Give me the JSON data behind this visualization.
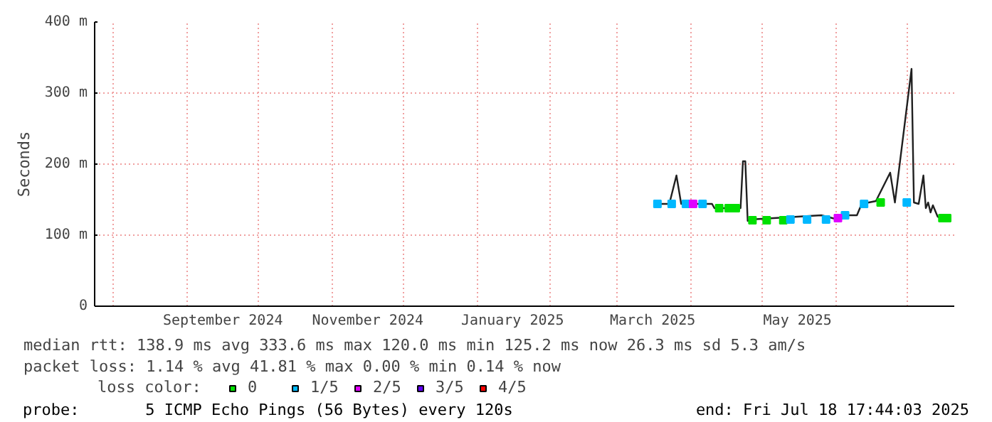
{
  "chart_data": {
    "type": "line",
    "ylabel": "Seconds",
    "xlim": [
      "2024-07-24",
      "2025-07-21"
    ],
    "xticks": [
      {
        "value": "2024-08-01",
        "label": null
      },
      {
        "value": "2024-09-01",
        "label": null
      },
      {
        "value": "2024-09-16",
        "label": "September 2024"
      },
      {
        "value": "2024-10-01",
        "label": null
      },
      {
        "value": "2024-11-01",
        "label": null
      },
      {
        "value": "2024-11-16",
        "label": "November 2024"
      },
      {
        "value": "2024-12-01",
        "label": null
      },
      {
        "value": "2025-01-01",
        "label": null
      },
      {
        "value": "2025-01-16",
        "label": "January 2025"
      },
      {
        "value": "2025-02-01",
        "label": null
      },
      {
        "value": "2025-03-01",
        "label": null
      },
      {
        "value": "2025-03-16",
        "label": "March 2025"
      },
      {
        "value": "2025-04-01",
        "label": null
      },
      {
        "value": "2025-05-01",
        "label": null
      },
      {
        "value": "2025-05-16",
        "label": "May 2025"
      },
      {
        "value": "2025-06-01",
        "label": null
      },
      {
        "value": "2025-07-01",
        "label": null
      }
    ],
    "ylim": [
      0,
      400
    ],
    "yticks": [
      0,
      {
        "value": 100,
        "label": "100 m"
      },
      {
        "value": 200,
        "label": "200 m"
      },
      {
        "value": 300,
        "label": "300 m"
      },
      {
        "value": 400,
        "label": "400 m"
      }
    ],
    "grid": true,
    "legend": "bottom",
    "legend_title": "loss color:",
    "series": [
      {
        "color": "#202020",
        "x": [
          "2025-03-18",
          "2025-03-23",
          "2025-03-26",
          "2025-03-28",
          "2025-04-10",
          "2025-04-11",
          "2025-04-22",
          "2025-04-23",
          "2025-04-24",
          "2025-04-25",
          "2025-04-26",
          "2025-05-26",
          "2025-06-02",
          "2025-06-03",
          "2025-06-10",
          "2025-06-12",
          "2025-06-18",
          "2025-06-24",
          "2025-06-26",
          "2025-07-03",
          "2025-07-04",
          "2025-07-06",
          "2025-07-08",
          "2025-07-09",
          "2025-07-10",
          "2025-07-11",
          "2025-07-12",
          "2025-07-14",
          "2025-07-15",
          "2025-07-18"
        ],
        "values": [
          144,
          144,
          184,
          144,
          144,
          138,
          138,
          204,
          204,
          120,
          122,
          128,
          122,
          128,
          128,
          144,
          148,
          188,
          146,
          334,
          146,
          144,
          184,
          138,
          146,
          132,
          142,
          126,
          124,
          124
        ]
      },
      {
        "name": "0",
        "color": "#00e000",
        "type": "scatter",
        "marker": "square",
        "x": [
          "2025-04-13",
          "2025-04-17",
          "2025-04-20",
          "2025-04-27",
          "2025-05-03",
          "2025-05-10",
          "2025-06-20",
          "2025-07-16",
          "2025-07-18"
        ],
        "values": [
          138,
          138,
          138,
          121,
          121,
          121,
          146,
          124,
          124
        ]
      },
      {
        "name": "1/5",
        "color": "#00b8ff",
        "type": "scatter",
        "marker": "square",
        "x": [
          "2025-03-18",
          "2025-03-24",
          "2025-03-30",
          "2025-04-06",
          "2025-05-13",
          "2025-05-20",
          "2025-05-28",
          "2025-06-05",
          "2025-06-13",
          "2025-07-01"
        ],
        "values": [
          144,
          144,
          144,
          144,
          122,
          122,
          122,
          128,
          144,
          146
        ]
      },
      {
        "name": "2/5",
        "color": "#e000ff",
        "type": "scatter",
        "marker": "square",
        "x": [
          "2025-04-02",
          "2025-06-02"
        ],
        "values": [
          144,
          124
        ]
      },
      {
        "name": "3/5",
        "color": "#6000ff",
        "type": "scatter"
      },
      {
        "name": "4/5",
        "color": "#ff0000",
        "type": "scatter"
      }
    ],
    "annotations": [
      "median rtt:  138.9 ms avg  333.6 ms max  120.0 ms min  125.2 ms now  26.3 ms sd  5.3   am/s",
      "packet loss: 1.14 % avg  41.81 % max  0.00 % min  0.14 % now",
      "probe:       5 ICMP Echo Pings (56 Bytes) every 120s",
      "end: Fri Jul 18 17:44:03 2025"
    ]
  }
}
